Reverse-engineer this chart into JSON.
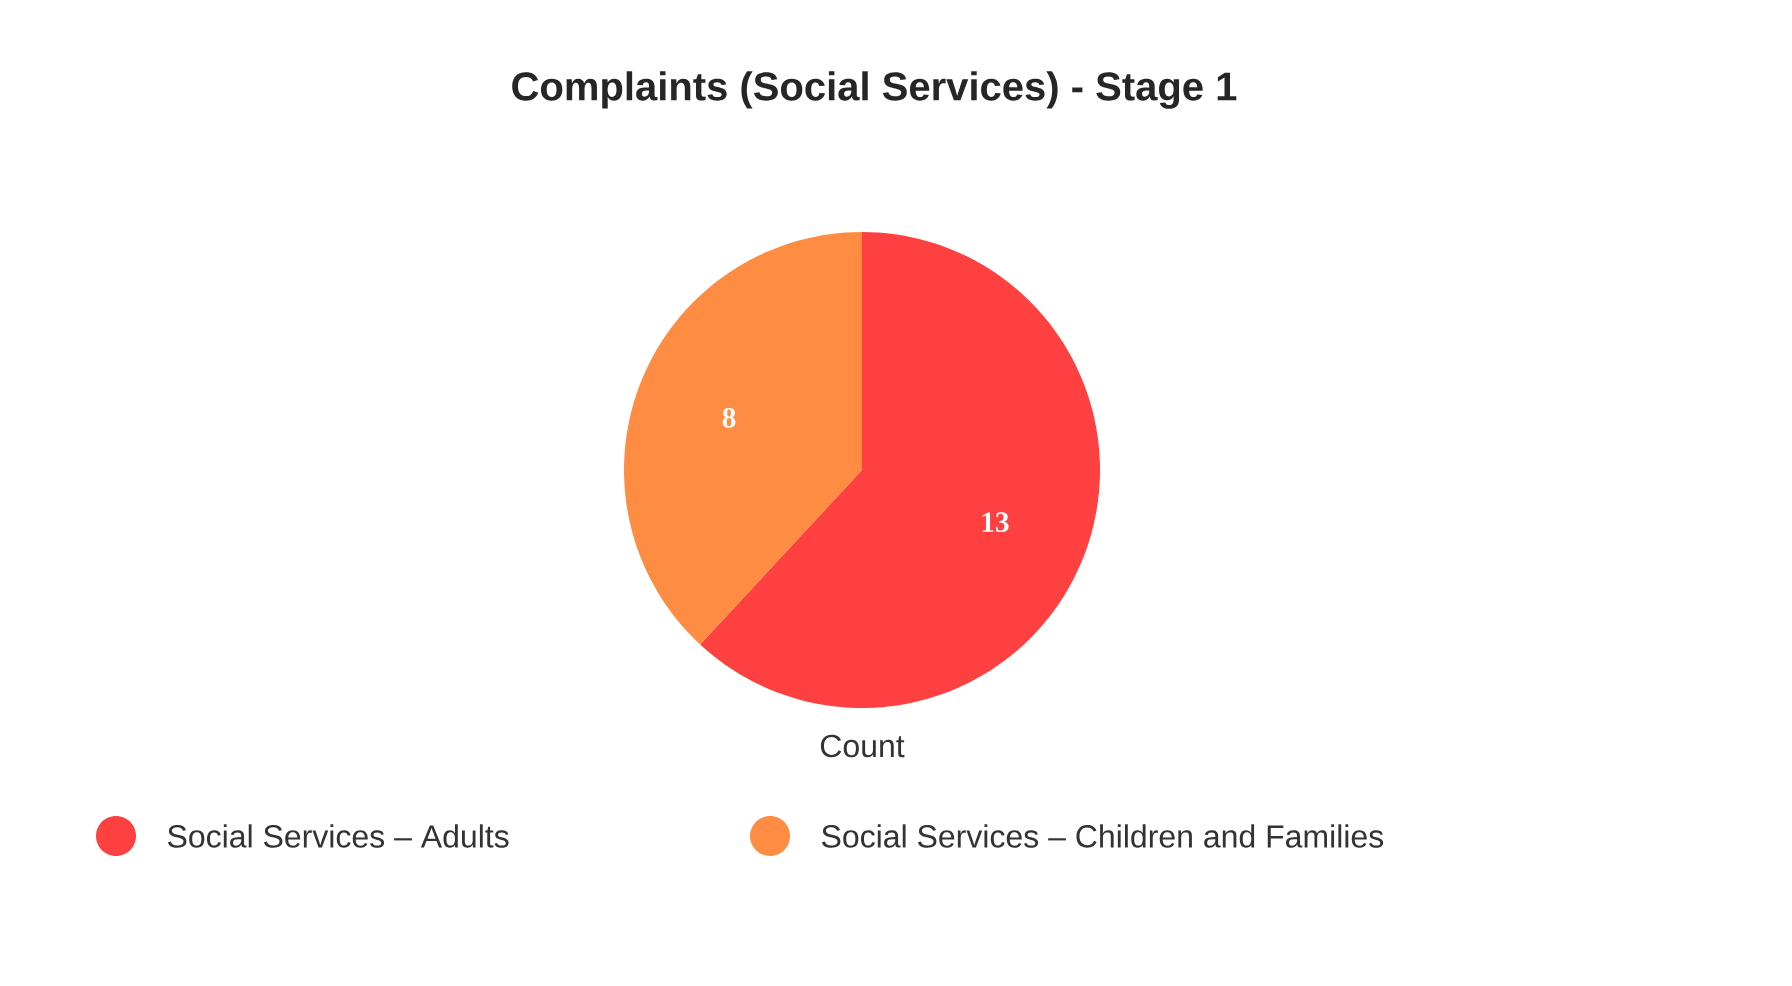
{
  "chart_data": {
    "type": "pie",
    "title": "Complaints (Social Services) - Stage 1",
    "xlabel": "Count",
    "categories": [
      "Social Services – Adults",
      "Social Services – Children and Families"
    ],
    "values": [
      13,
      8
    ],
    "colors": [
      "#ff4040",
      "#ff8c42"
    ],
    "data_labels": true,
    "legend": "bottom"
  }
}
